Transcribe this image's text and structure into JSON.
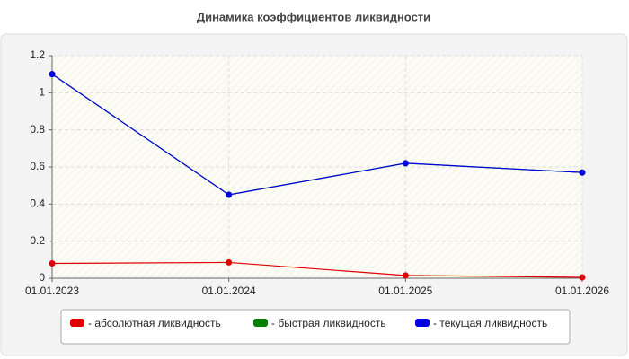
{
  "chart_data": {
    "type": "line",
    "title": "Динамика коэффициентов ликвидности",
    "categories": [
      "01.01.2023",
      "01.01.2024",
      "01.01.2025",
      "01.01.2026"
    ],
    "series": [
      {
        "name": "- абсолютная ликвидность",
        "color": "#e00000",
        "values": [
          0.08,
          0.085,
          0.015,
          0.005
        ]
      },
      {
        "name": "- быстрая ликвидность",
        "color": "#008000",
        "values": [
          1.1,
          0.45,
          0.62,
          0.57
        ]
      },
      {
        "name": "- текущая ликвидность",
        "color": "#0000e0",
        "values": [
          1.1,
          0.45,
          0.62,
          0.57
        ]
      }
    ],
    "ylim": [
      0,
      1.2
    ],
    "yticks": [
      0,
      0.2,
      0.4,
      0.6,
      0.8,
      1,
      1.2
    ],
    "grid": true
  }
}
